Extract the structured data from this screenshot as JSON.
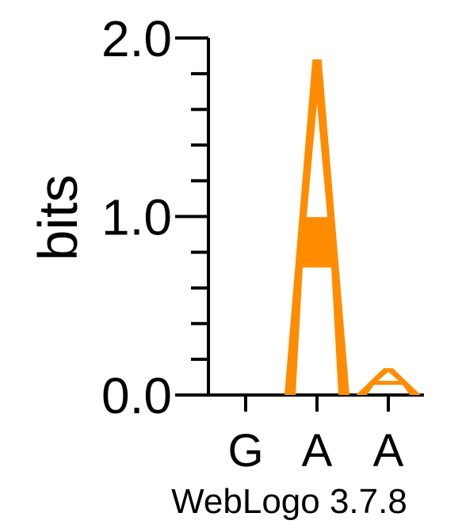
{
  "chart_data": {
    "type": "sequence_logo",
    "ylabel": "bits",
    "ylim": [
      0,
      2.0
    ],
    "yticks": [
      {
        "value": 0.0,
        "label": "0.0"
      },
      {
        "value": 1.0,
        "label": "1.0"
      },
      {
        "value": 2.0,
        "label": "2.0"
      }
    ],
    "minor_tick_step": 0.2,
    "positions": [
      {
        "label": "G",
        "letters": []
      },
      {
        "label": "A",
        "letters": [
          {
            "letter": "A",
            "bits": 1.88,
            "color": "#FF8C00"
          }
        ]
      },
      {
        "label": "A",
        "letters": [
          {
            "letter": "A",
            "bits": 0.15,
            "color": "#FF8C00"
          }
        ]
      }
    ],
    "footer": "WebLogo 3.7.8"
  }
}
